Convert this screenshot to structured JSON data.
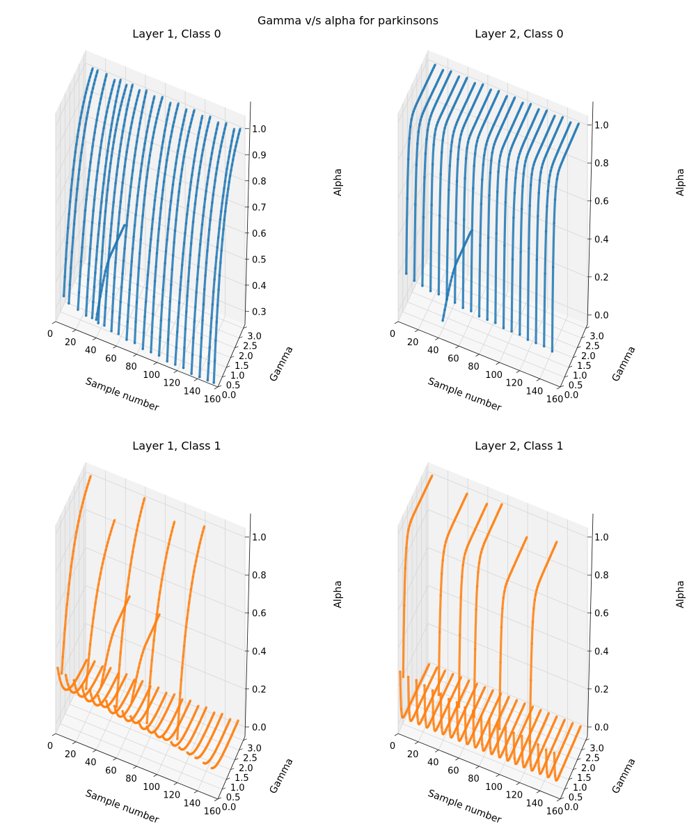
{
  "figure": {
    "title": "Gamma v/s alpha for parkinsons"
  },
  "chart_data": [
    {
      "type": "scatter",
      "projection": "3d",
      "title": "Layer 1, Class 0",
      "xlabel": "Sample number",
      "ylabel": "Gamma",
      "zlabel": "Alpha",
      "xticks": [
        "0",
        "20",
        "40",
        "60",
        "80",
        "100",
        "120",
        "140",
        "160"
      ],
      "yticks": [
        "0.0",
        "0.5",
        "1.0",
        "1.5",
        "2.0",
        "2.5",
        "3.0"
      ],
      "zticks": [
        "0.3",
        "0.4",
        "0.5",
        "0.6",
        "0.7",
        "0.8",
        "0.9",
        "1.0"
      ],
      "xlim": [
        0,
        160
      ],
      "ylim": [
        0,
        3.2
      ],
      "zlim": [
        0.25,
        1.05
      ],
      "grid": true,
      "color": "#1f77b4",
      "series_description": "Each sample traces alpha rising from about 0.3 toward 1.0 as gamma grows from 0 to 3; one sample drifts near alpha 0.4-0.5.",
      "trajectories": [
        {
          "x": 8,
          "z0": 0.36,
          "z1": 1.0,
          "k": 0.9
        },
        {
          "x": 13,
          "z0": 0.34,
          "z1": 1.0,
          "k": 0.8
        },
        {
          "x": 22,
          "z0": 0.33,
          "z1": 1.0,
          "k": 0.7
        },
        {
          "x": 30,
          "z0": 0.32,
          "z1": 0.99,
          "k": 0.8
        },
        {
          "x": 36,
          "z0": 0.32,
          "z1": 1.0,
          "k": 0.6
        },
        {
          "x": 42,
          "z0": 0.31,
          "z1": 0.99,
          "k": 0.9
        },
        {
          "x": 48,
          "z0": 0.31,
          "z1": 1.0,
          "k": 0.7
        },
        {
          "x": 55,
          "z0": 0.3,
          "z1": 0.99,
          "k": 0.8
        },
        {
          "x": 62,
          "z0": 0.3,
          "z1": 1.0,
          "k": 0.6
        },
        {
          "x": 70,
          "z0": 0.29,
          "z1": 0.99,
          "k": 0.7
        },
        {
          "x": 78,
          "z0": 0.29,
          "z1": 1.0,
          "k": 0.9
        },
        {
          "x": 86,
          "z0": 0.28,
          "z1": 0.99,
          "k": 0.6
        },
        {
          "x": 94,
          "z0": 0.28,
          "z1": 1.0,
          "k": 0.8
        },
        {
          "x": 102,
          "z0": 0.28,
          "z1": 0.99,
          "k": 0.7
        },
        {
          "x": 110,
          "z0": 0.27,
          "z1": 1.0,
          "k": 0.9
        },
        {
          "x": 118,
          "z0": 0.27,
          "z1": 0.99,
          "k": 0.6
        },
        {
          "x": 126,
          "z0": 0.27,
          "z1": 1.0,
          "k": 0.8
        },
        {
          "x": 134,
          "z0": 0.26,
          "z1": 0.99,
          "k": 0.7
        },
        {
          "x": 142,
          "z0": 0.26,
          "z1": 1.0,
          "k": 0.8
        },
        {
          "x": 150,
          "z0": 0.26,
          "z1": 0.99,
          "k": 0.6
        },
        {
          "x": 156,
          "z0": 0.26,
          "z1": 1.0,
          "k": 0.9
        },
        {
          "x": 40,
          "z0": 0.32,
          "z1": 0.45,
          "k": 0.3,
          "kind": "flat"
        }
      ]
    },
    {
      "type": "scatter",
      "projection": "3d",
      "title": "Layer 2, Class 0",
      "xlabel": "Sample number",
      "ylabel": "Gamma",
      "zlabel": "Alpha",
      "xticks": [
        "0",
        "20",
        "40",
        "60",
        "80",
        "100",
        "120",
        "140",
        "160"
      ],
      "yticks": [
        "0.0",
        "0.5",
        "1.0",
        "1.5",
        "2.0",
        "2.5",
        "3.0"
      ],
      "zticks": [
        "0.0",
        "0.2",
        "0.4",
        "0.6",
        "0.8",
        "1.0"
      ],
      "xlim": [
        0,
        160
      ],
      "ylim": [
        0,
        3.2
      ],
      "zlim": [
        -0.05,
        1.05
      ],
      "grid": true,
      "color": "#1f77b4",
      "series_description": "Alpha jumps steeply from about 0.2 to 0.8 at small gamma, then climbs gently toward 1.0.",
      "trajectories": [
        {
          "x": 8,
          "z0": 0.22,
          "z1": 1.0,
          "k": 6
        },
        {
          "x": 16,
          "z0": 0.2,
          "z1": 0.99,
          "k": 6
        },
        {
          "x": 24,
          "z0": 0.19,
          "z1": 1.0,
          "k": 5
        },
        {
          "x": 32,
          "z0": 0.18,
          "z1": 0.99,
          "k": 7
        },
        {
          "x": 40,
          "z0": 0.18,
          "z1": 1.0,
          "k": 6
        },
        {
          "x": 48,
          "z0": 0.17,
          "z1": 0.99,
          "k": 5
        },
        {
          "x": 56,
          "z0": 0.17,
          "z1": 1.0,
          "k": 6
        },
        {
          "x": 64,
          "z0": 0.16,
          "z1": 0.99,
          "k": 7
        },
        {
          "x": 72,
          "z0": 0.16,
          "z1": 1.0,
          "k": 6
        },
        {
          "x": 80,
          "z0": 0.15,
          "z1": 0.99,
          "k": 5
        },
        {
          "x": 88,
          "z0": 0.15,
          "z1": 1.0,
          "k": 6
        },
        {
          "x": 96,
          "z0": 0.15,
          "z1": 0.99,
          "k": 7
        },
        {
          "x": 104,
          "z0": 0.14,
          "z1": 1.0,
          "k": 6
        },
        {
          "x": 112,
          "z0": 0.14,
          "z1": 0.99,
          "k": 5
        },
        {
          "x": 120,
          "z0": 0.14,
          "z1": 1.0,
          "k": 6
        },
        {
          "x": 128,
          "z0": 0.13,
          "z1": 0.99,
          "k": 7
        },
        {
          "x": 136,
          "z0": 0.13,
          "z1": 1.0,
          "k": 6
        },
        {
          "x": 144,
          "z0": 0.13,
          "z1": 0.99,
          "k": 5
        },
        {
          "x": 152,
          "z0": 0.12,
          "z1": 1.0,
          "k": 6
        },
        {
          "x": 44,
          "z0": 0.05,
          "z1": 0.2,
          "k": 0.5,
          "kind": "flat"
        }
      ]
    },
    {
      "type": "scatter",
      "projection": "3d",
      "title": "Layer 1, Class 1",
      "xlabel": "Sample number",
      "ylabel": "Gamma",
      "zlabel": "Alpha",
      "xticks": [
        "0",
        "20",
        "40",
        "60",
        "80",
        "100",
        "120",
        "140",
        "160"
      ],
      "yticks": [
        "0.0",
        "0.5",
        "1.0",
        "1.5",
        "2.0",
        "2.5",
        "3.0"
      ],
      "zticks": [
        "0.0",
        "0.2",
        "0.4",
        "0.6",
        "0.8",
        "1.0"
      ],
      "xlim": [
        0,
        160
      ],
      "ylim": [
        0,
        3.2
      ],
      "zlim": [
        -0.05,
        1.05
      ],
      "grid": true,
      "color": "#ff7f0e",
      "series_description": "Most samples stay near alpha 0.0-0.2 across gamma; a few rise toward 0.8-1.0.",
      "trajectories": [
        {
          "x": 6,
          "z0": 0.28,
          "z1": 1.0,
          "k": 0.9,
          "kind": "rise"
        },
        {
          "x": 30,
          "z0": 0.25,
          "z1": 0.82,
          "k": 0.8,
          "kind": "rise"
        },
        {
          "x": 60,
          "z0": 0.22,
          "z1": 1.0,
          "k": 0.7,
          "kind": "rise"
        },
        {
          "x": 90,
          "z0": 0.2,
          "z1": 0.94,
          "k": 0.7,
          "kind": "rise"
        },
        {
          "x": 120,
          "z0": 0.18,
          "z1": 0.98,
          "k": 0.8,
          "kind": "rise"
        },
        {
          "x": 45,
          "z0": 0.3,
          "z1": 0.45,
          "k": 0.4,
          "kind": "flat"
        },
        {
          "x": 75,
          "z0": 0.28,
          "z1": 0.42,
          "k": 0.4,
          "kind": "flat"
        },
        {
          "x": 2,
          "z0": 0.3,
          "z1": 0.02,
          "k": 1.5,
          "kind": "decay"
        },
        {
          "x": 10,
          "z0": 0.28,
          "z1": 0.03,
          "k": 1.5,
          "kind": "decay"
        },
        {
          "x": 18,
          "z0": 0.27,
          "z1": 0.02,
          "k": 1.4,
          "kind": "decay"
        },
        {
          "x": 26,
          "z0": 0.26,
          "z1": 0.03,
          "k": 1.6,
          "kind": "decay"
        },
        {
          "x": 34,
          "z0": 0.25,
          "z1": 0.02,
          "k": 1.5,
          "kind": "decay"
        },
        {
          "x": 42,
          "z0": 0.24,
          "z1": 0.03,
          "k": 1.4,
          "kind": "decay"
        },
        {
          "x": 50,
          "z0": 0.23,
          "z1": 0.02,
          "k": 1.5,
          "kind": "decay"
        },
        {
          "x": 58,
          "z0": 0.22,
          "z1": 0.03,
          "k": 1.6,
          "kind": "decay"
        },
        {
          "x": 66,
          "z0": 0.21,
          "z1": 0.02,
          "k": 1.5,
          "kind": "decay"
        },
        {
          "x": 74,
          "z0": 0.2,
          "z1": 0.03,
          "k": 1.4,
          "kind": "decay"
        },
        {
          "x": 82,
          "z0": 0.19,
          "z1": 0.02,
          "k": 1.5,
          "kind": "decay"
        },
        {
          "x": 90,
          "z0": 0.18,
          "z1": 0.03,
          "k": 1.6,
          "kind": "decay"
        },
        {
          "x": 98,
          "z0": 0.17,
          "z1": 0.02,
          "k": 1.5,
          "kind": "decay"
        },
        {
          "x": 106,
          "z0": 0.16,
          "z1": 0.03,
          "k": 1.4,
          "kind": "decay"
        },
        {
          "x": 114,
          "z0": 0.15,
          "z1": 0.02,
          "k": 1.5,
          "kind": "decay"
        },
        {
          "x": 122,
          "z0": 0.14,
          "z1": 0.03,
          "k": 1.6,
          "kind": "decay"
        },
        {
          "x": 130,
          "z0": 0.13,
          "z1": 0.02,
          "k": 1.5,
          "kind": "decay"
        },
        {
          "x": 138,
          "z0": 0.12,
          "z1": 0.03,
          "k": 1.4,
          "kind": "decay"
        },
        {
          "x": 146,
          "z0": 0.11,
          "z1": 0.02,
          "k": 1.5,
          "kind": "decay"
        },
        {
          "x": 154,
          "z0": 0.1,
          "z1": 0.03,
          "k": 1.6,
          "kind": "decay"
        }
      ]
    },
    {
      "type": "scatter",
      "projection": "3d",
      "title": "Layer 2, Class 1",
      "xlabel": "Sample number",
      "ylabel": "Gamma",
      "zlabel": "Alpha",
      "xticks": [
        "0",
        "20",
        "40",
        "60",
        "80",
        "100",
        "120",
        "140",
        "160"
      ],
      "yticks": [
        "0.0",
        "0.5",
        "1.0",
        "1.5",
        "2.0",
        "2.5",
        "3.0"
      ],
      "zticks": [
        "0.0",
        "0.2",
        "0.4",
        "0.6",
        "0.8",
        "1.0"
      ],
      "xlim": [
        0,
        160
      ],
      "ylim": [
        0,
        3.2
      ],
      "zlim": [
        -0.05,
        1.05
      ],
      "grid": true,
      "color": "#ff7f0e",
      "series_description": "Most samples drop to alpha near 0.0 at very small gamma and stay flat; a few jump to 0.6-1.0.",
      "trajectories": [
        {
          "x": 5,
          "z0": 0.26,
          "z1": 1.0,
          "k": 6,
          "kind": "rise"
        },
        {
          "x": 40,
          "z0": 0.24,
          "z1": 0.98,
          "k": 5,
          "kind": "rise"
        },
        {
          "x": 60,
          "z0": 0.22,
          "z1": 0.97,
          "k": 6,
          "kind": "rise"
        },
        {
          "x": 75,
          "z0": 0.2,
          "z1": 1.0,
          "k": 5,
          "kind": "rise"
        },
        {
          "x": 100,
          "z0": 0.19,
          "z1": 0.88,
          "k": 6,
          "kind": "rise"
        },
        {
          "x": 130,
          "z0": 0.18,
          "z1": 0.92,
          "k": 5,
          "kind": "rise"
        },
        {
          "x": 2,
          "z0": 0.28,
          "z1": 0.0,
          "k": 12,
          "kind": "decay"
        },
        {
          "x": 10,
          "z0": 0.27,
          "z1": 0.0,
          "k": 12,
          "kind": "decay"
        },
        {
          "x": 18,
          "z0": 0.27,
          "z1": 0.0,
          "k": 12,
          "kind": "decay"
        },
        {
          "x": 26,
          "z0": 0.26,
          "z1": 0.0,
          "k": 12,
          "kind": "decay"
        },
        {
          "x": 34,
          "z0": 0.25,
          "z1": 0.0,
          "k": 12,
          "kind": "decay"
        },
        {
          "x": 42,
          "z0": 0.25,
          "z1": 0.0,
          "k": 12,
          "kind": "decay"
        },
        {
          "x": 50,
          "z0": 0.24,
          "z1": 0.0,
          "k": 12,
          "kind": "decay"
        },
        {
          "x": 58,
          "z0": 0.24,
          "z1": 0.0,
          "k": 12,
          "kind": "decay"
        },
        {
          "x": 66,
          "z0": 0.23,
          "z1": 0.0,
          "k": 12,
          "kind": "decay"
        },
        {
          "x": 74,
          "z0": 0.23,
          "z1": 0.0,
          "k": 12,
          "kind": "decay"
        },
        {
          "x": 82,
          "z0": 0.22,
          "z1": 0.0,
          "k": 12,
          "kind": "decay"
        },
        {
          "x": 90,
          "z0": 0.22,
          "z1": 0.0,
          "k": 12,
          "kind": "decay"
        },
        {
          "x": 98,
          "z0": 0.21,
          "z1": 0.0,
          "k": 12,
          "kind": "decay"
        },
        {
          "x": 106,
          "z0": 0.21,
          "z1": 0.0,
          "k": 12,
          "kind": "decay"
        },
        {
          "x": 114,
          "z0": 0.2,
          "z1": 0.0,
          "k": 12,
          "kind": "decay"
        },
        {
          "x": 122,
          "z0": 0.2,
          "z1": 0.0,
          "k": 12,
          "kind": "decay"
        },
        {
          "x": 130,
          "z0": 0.19,
          "z1": 0.0,
          "k": 12,
          "kind": "decay"
        },
        {
          "x": 138,
          "z0": 0.19,
          "z1": 0.0,
          "k": 12,
          "kind": "decay"
        },
        {
          "x": 146,
          "z0": 0.18,
          "z1": 0.0,
          "k": 12,
          "kind": "decay"
        },
        {
          "x": 154,
          "z0": 0.18,
          "z1": 0.0,
          "k": 12,
          "kind": "decay"
        }
      ]
    }
  ]
}
